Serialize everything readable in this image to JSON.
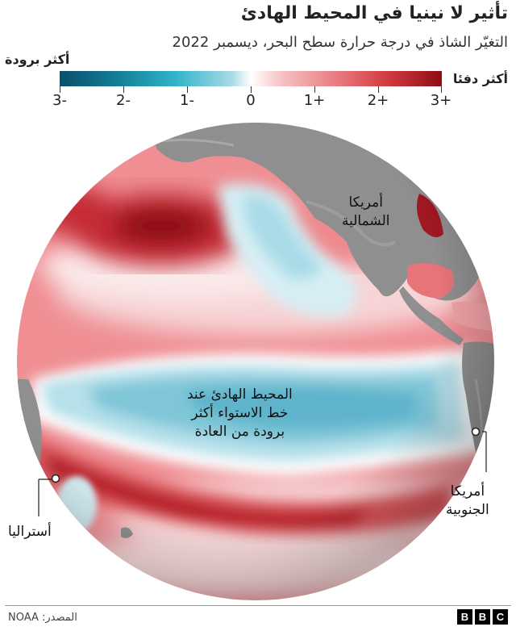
{
  "title": "تأثير لا نينيا في المحيط الهادئ",
  "subtitle": "التغيّر الشاذ في درجة حرارة سطح البحر، ديسمبر 2022",
  "legend": {
    "cooler_label": "أكثر برودة",
    "warmer_label": "أكثر دفئا",
    "ticks": [
      "-3",
      "-2",
      "-1",
      "0",
      "+1",
      "+2",
      "+3"
    ],
    "colors": {
      "cold_end": "#0b4f6c",
      "cool": "#2fb3c8",
      "neutral": "#ffffff",
      "warm": "#ea7d82",
      "warm_end": "#8e0d14"
    }
  },
  "map": {
    "labels": {
      "north_america": [
        "أمريكا",
        "الشمالية"
      ],
      "south_america": [
        "أمريكا",
        "الجنوبية"
      ],
      "australia": "أستراليا",
      "equatorial_pacific": [
        "المحيط الهادئ عند",
        "خط الاستواء أكثر",
        "برودة من العادة"
      ]
    },
    "land_color": "#8f8f8f"
  },
  "footer": {
    "source": "المصدر: NOAA",
    "logo_letters": [
      "B",
      "B",
      "C"
    ]
  }
}
